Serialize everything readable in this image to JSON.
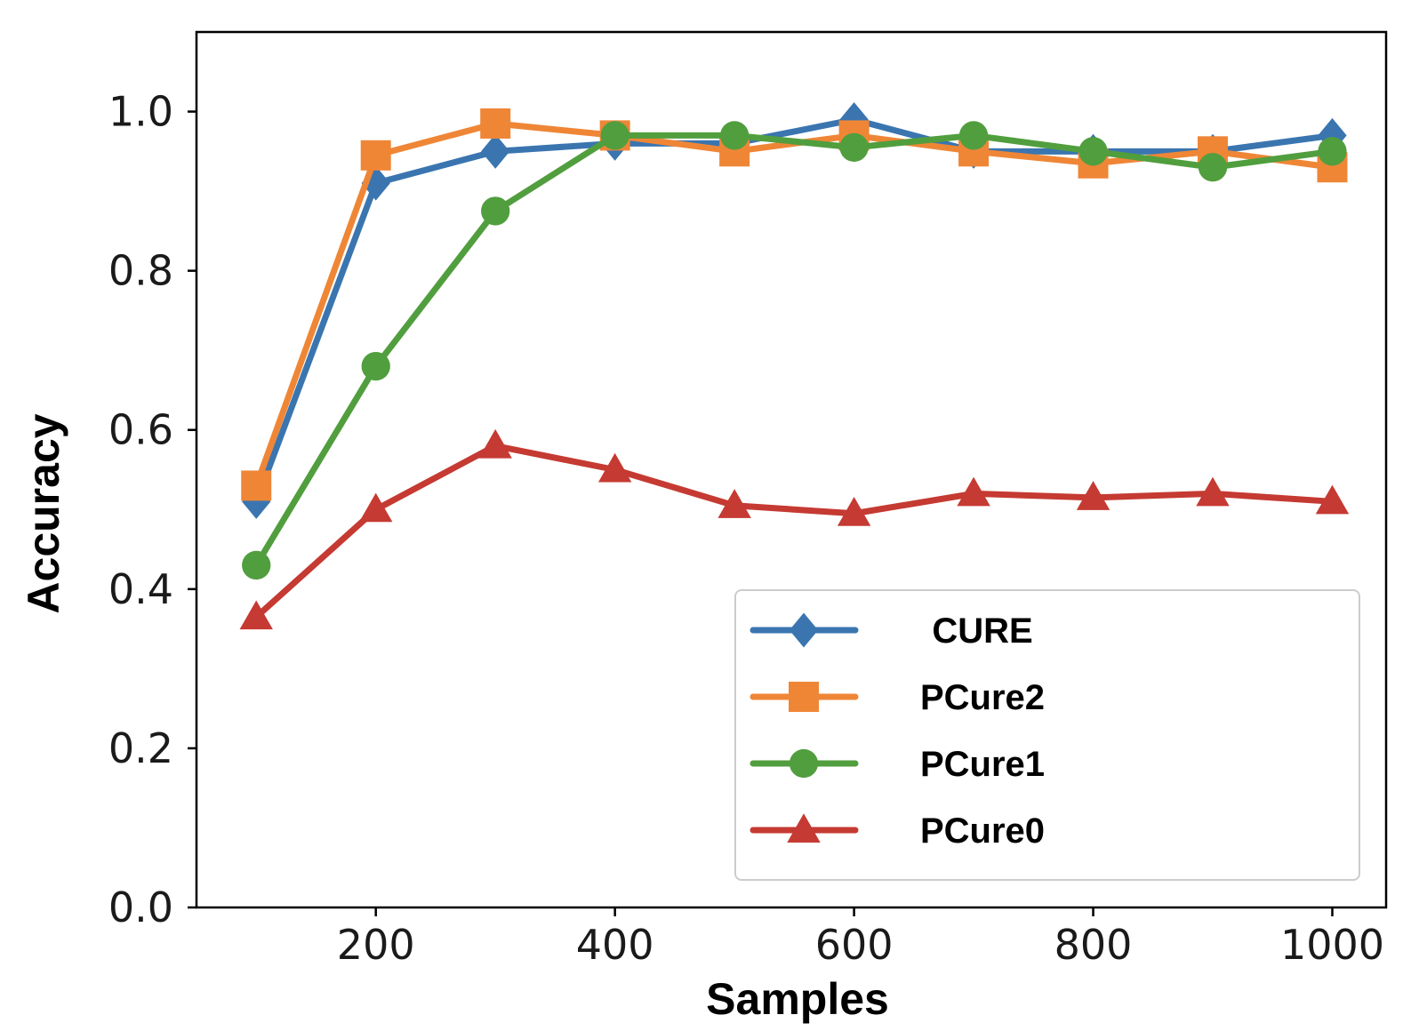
{
  "chart_data": {
    "type": "line",
    "title": "",
    "xlabel": "Samples",
    "ylabel": "Accuracy",
    "xlim": [
      50,
      1045
    ],
    "ylim": [
      0.0,
      1.1
    ],
    "x": [
      100,
      200,
      300,
      400,
      500,
      600,
      700,
      800,
      900,
      1000
    ],
    "xticks": [
      200,
      400,
      600,
      800,
      1000
    ],
    "xtick_labels": [
      "200",
      "400",
      "600",
      "800",
      "1000"
    ],
    "yticks": [
      0.0,
      0.2,
      0.4,
      0.6,
      0.8,
      1.0
    ],
    "ytick_labels": [
      "0.0",
      "0.2",
      "0.4",
      "0.6",
      "0.8",
      "1.0"
    ],
    "grid": false,
    "legend_position": "lower-right",
    "series": [
      {
        "name": "CURE",
        "color": "#3a75b0",
        "marker": "diamond",
        "values": [
          0.51,
          0.91,
          0.95,
          0.96,
          0.96,
          0.99,
          0.95,
          0.95,
          0.95,
          0.97
        ]
      },
      {
        "name": "PCure2",
        "color": "#ef8636",
        "marker": "square",
        "values": [
          0.53,
          0.945,
          0.985,
          0.97,
          0.95,
          0.97,
          0.95,
          0.935,
          0.95,
          0.93
        ]
      },
      {
        "name": "PCure1",
        "color": "#519e3e",
        "marker": "circle",
        "values": [
          0.43,
          0.68,
          0.875,
          0.97,
          0.97,
          0.955,
          0.97,
          0.95,
          0.93,
          0.95
        ]
      },
      {
        "name": "PCure0",
        "color": "#c53a32",
        "marker": "triangle",
        "values": [
          0.365,
          0.5,
          0.58,
          0.55,
          0.505,
          0.495,
          0.52,
          0.515,
          0.52,
          0.51
        ]
      }
    ]
  }
}
